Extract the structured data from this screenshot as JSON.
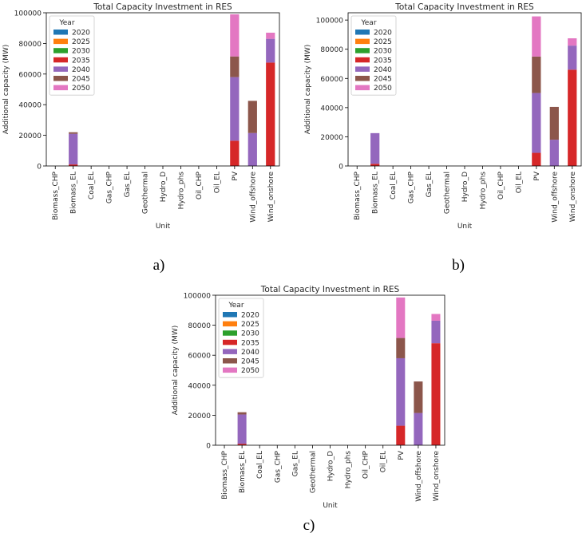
{
  "figure": {
    "captions": [
      "a)",
      "b)",
      "c)"
    ]
  },
  "series_colors": {
    "2020": "#1f77b4",
    "2025": "#ff7f0e",
    "2030": "#2ca02c",
    "2035": "#d62728",
    "2040": "#9467bd",
    "2045": "#8c564b",
    "2050": "#e377c2"
  },
  "chart_data": [
    {
      "type": "bar",
      "stacked": true,
      "title": "Total Capacity Investment in RES",
      "xlabel": "Unit",
      "ylabel": "Additional capacity (MW)",
      "ylim": [
        0,
        100000
      ],
      "yticks": [
        0,
        20000,
        40000,
        60000,
        80000,
        100000
      ],
      "legend_title": "Year",
      "legend_position": "top-left",
      "grid": false,
      "categories": [
        "Biomass_CHP",
        "Biomass_EL",
        "Coal_EL",
        "Gas_CHP",
        "Gas_EL",
        "Geothermal",
        "Hydro_D",
        "Hydro_phs",
        "Oil_CHP",
        "Oil_EL",
        "PV",
        "Wind_offshore",
        "Wind_onshore"
      ],
      "series": [
        {
          "name": "2020",
          "values": [
            0,
            0,
            0,
            0,
            0,
            0,
            0,
            0,
            0,
            0,
            0,
            0,
            0
          ]
        },
        {
          "name": "2025",
          "values": [
            0,
            0,
            0,
            0,
            0,
            0,
            0,
            0,
            0,
            0,
            0,
            0,
            0
          ]
        },
        {
          "name": "2030",
          "values": [
            0,
            0,
            0,
            0,
            0,
            0,
            0,
            0,
            0,
            0,
            0,
            0,
            0
          ]
        },
        {
          "name": "2035",
          "values": [
            0,
            1000,
            0,
            0,
            0,
            0,
            0,
            0,
            0,
            0,
            16500,
            0,
            67500
          ]
        },
        {
          "name": "2040",
          "values": [
            0,
            20000,
            0,
            0,
            0,
            0,
            0,
            0,
            0,
            0,
            41500,
            21500,
            15500
          ]
        },
        {
          "name": "2045",
          "values": [
            0,
            1000,
            0,
            0,
            0,
            0,
            0,
            0,
            0,
            0,
            13500,
            21000,
            0
          ]
        },
        {
          "name": "2050",
          "values": [
            0,
            0,
            0,
            0,
            0,
            0,
            0,
            0,
            0,
            0,
            27500,
            0,
            4000
          ]
        }
      ]
    },
    {
      "type": "bar",
      "stacked": true,
      "title": "Total Capacity Investment in RES",
      "xlabel": "Unit",
      "ylabel": "Additional capacity (MW)",
      "ylim": [
        0,
        105000
      ],
      "yticks": [
        0,
        20000,
        40000,
        60000,
        80000,
        100000
      ],
      "legend_title": "Year",
      "legend_position": "top-left",
      "grid": false,
      "categories": [
        "Biomass_CHP",
        "Biomass_EL",
        "Coal_EL",
        "Gas_CHP",
        "Gas_EL",
        "Geothermal",
        "Hydro_D",
        "Hydro_phs",
        "Oil_CHP",
        "Oil_EL",
        "PV",
        "Wind_offshore",
        "Wind_onshore"
      ],
      "series": [
        {
          "name": "2020",
          "values": [
            0,
            0,
            0,
            0,
            0,
            0,
            0,
            0,
            0,
            0,
            0,
            0,
            0
          ]
        },
        {
          "name": "2025",
          "values": [
            0,
            0,
            0,
            0,
            0,
            0,
            0,
            0,
            0,
            0,
            0,
            0,
            0
          ]
        },
        {
          "name": "2030",
          "values": [
            0,
            0,
            0,
            0,
            0,
            0,
            0,
            0,
            0,
            0,
            0,
            0,
            0
          ]
        },
        {
          "name": "2035",
          "values": [
            0,
            1500,
            0,
            0,
            0,
            0,
            0,
            0,
            0,
            0,
            9000,
            0,
            66000
          ]
        },
        {
          "name": "2040",
          "values": [
            0,
            21000,
            0,
            0,
            0,
            0,
            0,
            0,
            0,
            0,
            41000,
            18000,
            16500
          ]
        },
        {
          "name": "2045",
          "values": [
            0,
            0,
            0,
            0,
            0,
            0,
            0,
            0,
            0,
            0,
            25000,
            22500,
            0
          ]
        },
        {
          "name": "2050",
          "values": [
            0,
            0,
            0,
            0,
            0,
            0,
            0,
            0,
            0,
            0,
            27500,
            0,
            5000
          ]
        }
      ]
    },
    {
      "type": "bar",
      "stacked": true,
      "title": "Total Capacity Investment in RES",
      "xlabel": "Unit",
      "ylabel": "Additional capacity (MW)",
      "ylim": [
        0,
        100000
      ],
      "yticks": [
        0,
        20000,
        40000,
        60000,
        80000,
        100000
      ],
      "legend_title": "Year",
      "legend_position": "top-left",
      "grid": false,
      "categories": [
        "Biomass_CHP",
        "Biomass_EL",
        "Coal_EL",
        "Gas_CHP",
        "Gas_EL",
        "Geothermal",
        "Hydro_D",
        "Hydro_phs",
        "Oil_CHP",
        "Oil_EL",
        "PV",
        "Wind_offshore",
        "Wind_onshore"
      ],
      "series": [
        {
          "name": "2020",
          "values": [
            0,
            0,
            0,
            0,
            0,
            0,
            0,
            0,
            0,
            0,
            0,
            0,
            0
          ]
        },
        {
          "name": "2025",
          "values": [
            0,
            0,
            0,
            0,
            0,
            0,
            0,
            0,
            0,
            0,
            0,
            0,
            0
          ]
        },
        {
          "name": "2030",
          "values": [
            0,
            0,
            0,
            0,
            0,
            0,
            0,
            0,
            0,
            0,
            0,
            0,
            0
          ]
        },
        {
          "name": "2035",
          "values": [
            0,
            1000,
            0,
            0,
            0,
            0,
            0,
            0,
            0,
            0,
            13000,
            0,
            68000
          ]
        },
        {
          "name": "2040",
          "values": [
            0,
            19500,
            0,
            0,
            0,
            0,
            0,
            0,
            0,
            0,
            45000,
            21500,
            15000
          ]
        },
        {
          "name": "2045",
          "values": [
            0,
            1500,
            0,
            0,
            0,
            0,
            0,
            0,
            0,
            0,
            13500,
            21000,
            0
          ]
        },
        {
          "name": "2050",
          "values": [
            0,
            0,
            0,
            0,
            0,
            0,
            0,
            0,
            0,
            0,
            27000,
            0,
            4500
          ]
        }
      ]
    }
  ]
}
